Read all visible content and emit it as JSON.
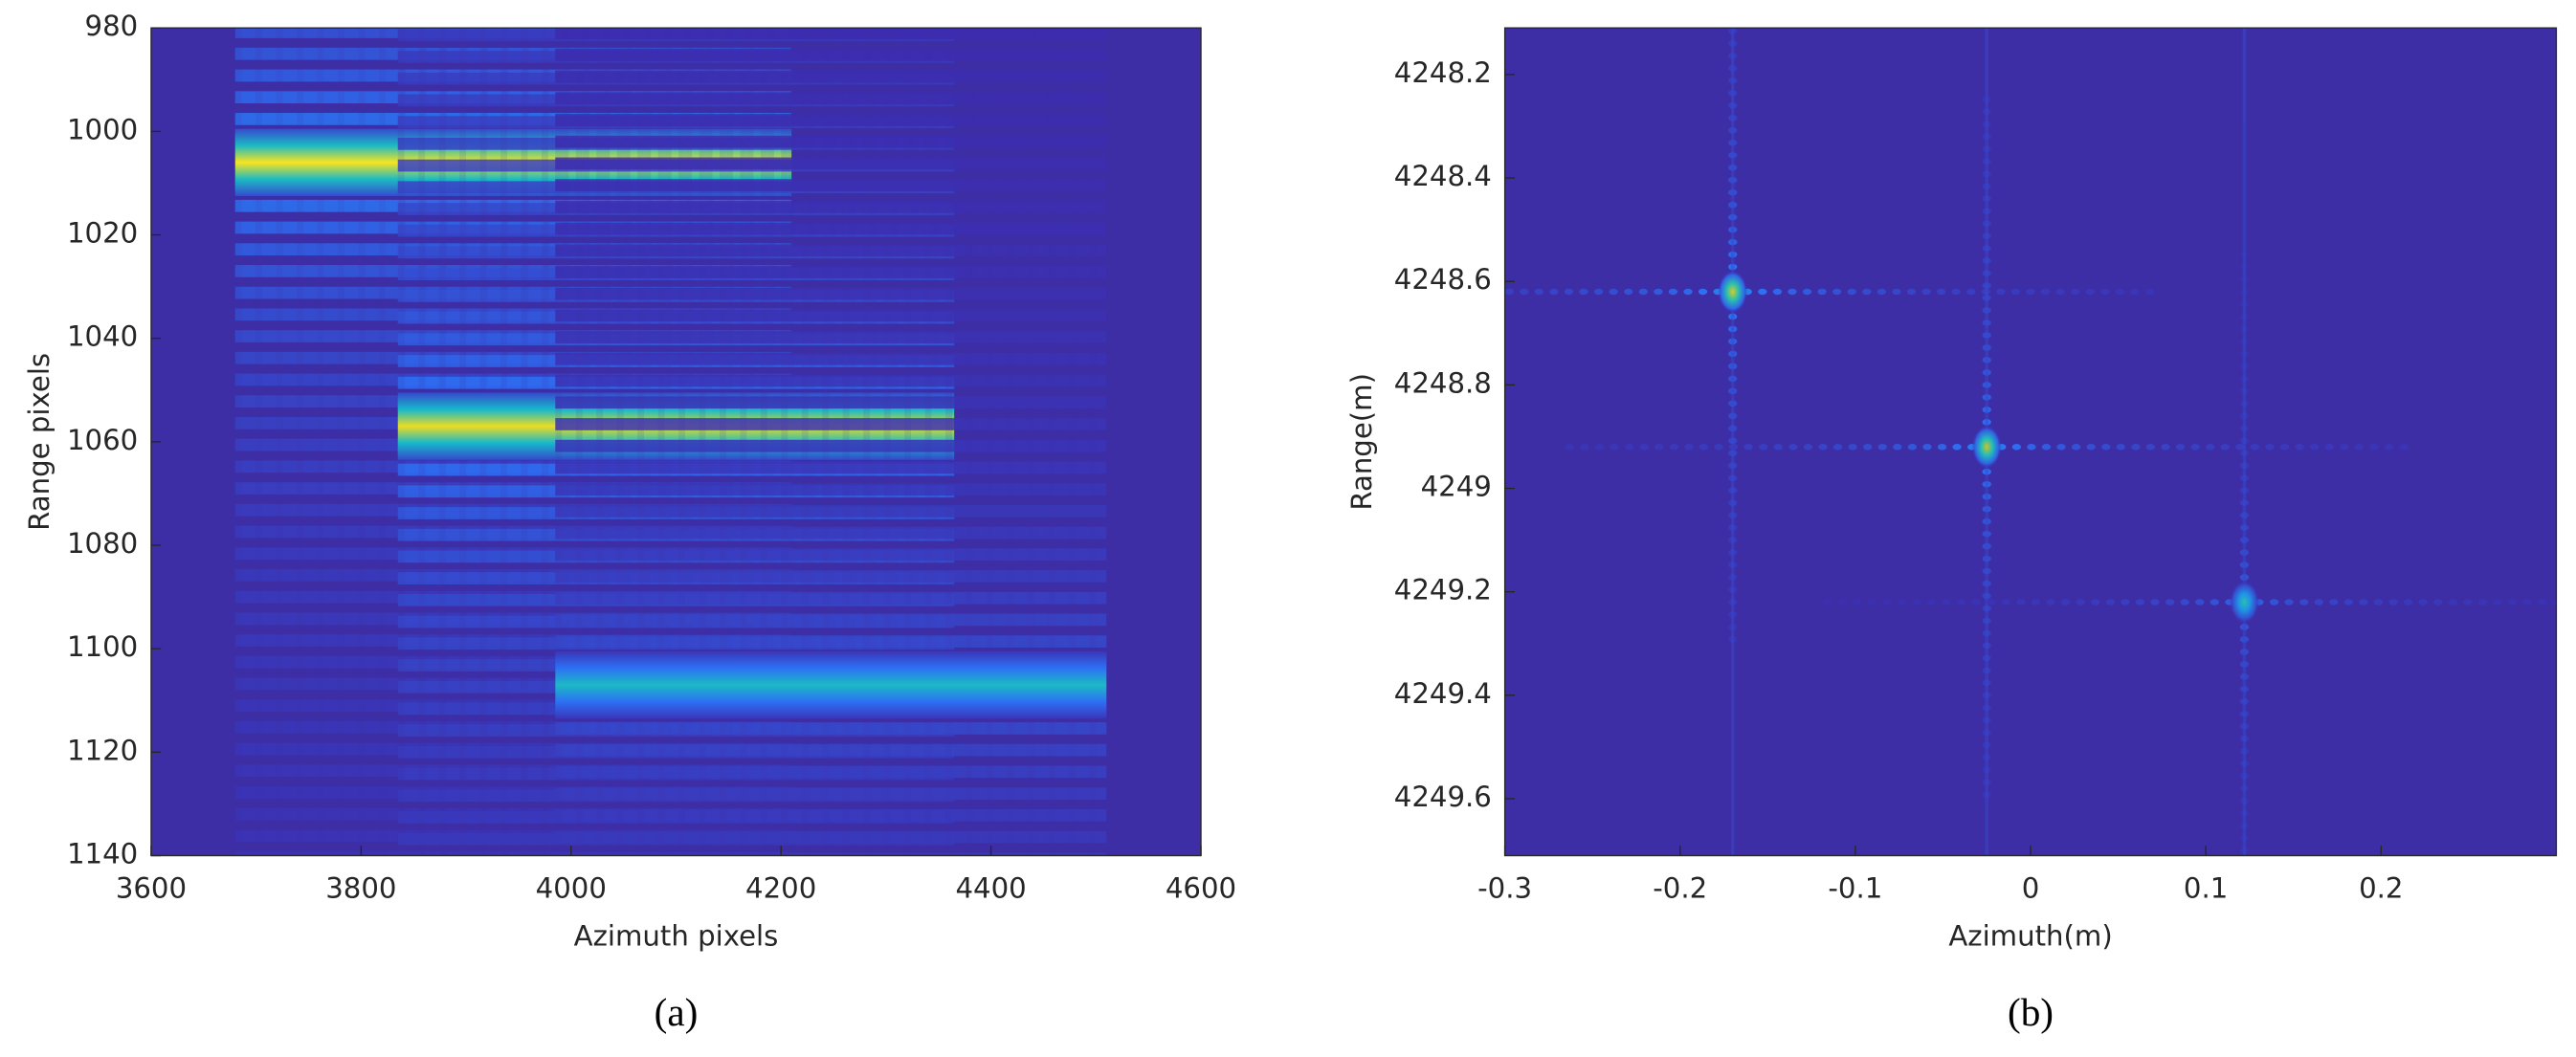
{
  "chart_data": [
    {
      "type": "heatmap",
      "xlabel": "Azimuth pixels",
      "ylabel": "Range pixels",
      "caption": "(a)",
      "xlim": [
        3600,
        4600
      ],
      "ylim": [
        980,
        1140
      ],
      "y_reversed": true,
      "xticks": [
        3600,
        3800,
        4000,
        4200,
        4400,
        4600
      ],
      "yticks": [
        980,
        1000,
        1020,
        1040,
        1060,
        1080,
        1100,
        1120,
        1140
      ],
      "background": "#3e2ea6",
      "colormap": [
        "#3e26a8",
        "#2d6ff4",
        "#10b6d6",
        "#3fc68f",
        "#c6c42a",
        "#f9e41e"
      ],
      "targets": [
        {
          "x": [
            3680,
            4210
          ],
          "y": 1006,
          "intensity": 1.0
        },
        {
          "x": [
            3835,
            4365
          ],
          "y": 1057,
          "intensity": 0.95
        },
        {
          "x": [
            3985,
            4510
          ],
          "y": 1107,
          "intensity": 0.45
        }
      ]
    },
    {
      "type": "pointmap",
      "xlabel": "Azimuth(m)",
      "ylabel": "Range(m)",
      "caption": "(b)",
      "xlim": [
        -0.3,
        0.3
      ],
      "ylim": [
        4248.11,
        4249.71
      ],
      "y_reversed": true,
      "xticks": [
        -0.3,
        -0.2,
        -0.1,
        0,
        0.1,
        0.2
      ],
      "yticks": [
        4248.2,
        4248.4,
        4248.6,
        4248.8,
        4249,
        4249.2,
        4249.4,
        4249.6
      ],
      "background": "#3e2ea6",
      "colormap": [
        "#3e26a8",
        "#2d6ff4",
        "#10b6d6",
        "#3fc68f",
        "#c6c42a",
        "#f9e41e"
      ],
      "targets": [
        {
          "x": -0.17,
          "y": 4248.62,
          "intensity": 0.85
        },
        {
          "x": -0.025,
          "y": 4248.92,
          "intensity": 0.8
        },
        {
          "x": 0.122,
          "y": 4249.22,
          "intensity": 0.5
        }
      ]
    }
  ]
}
